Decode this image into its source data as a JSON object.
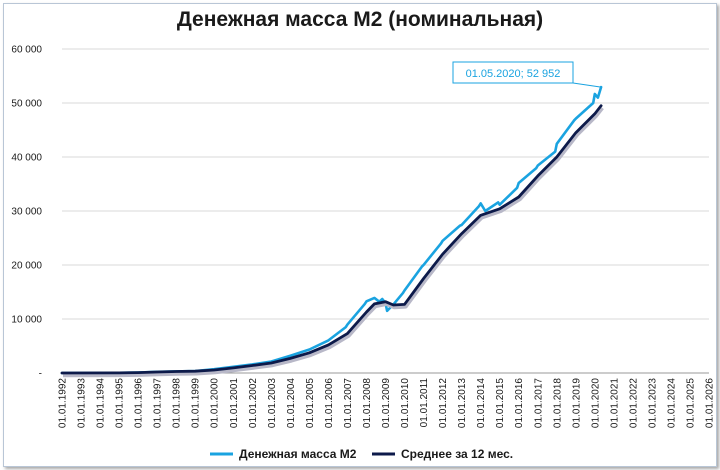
{
  "chart_data": {
    "type": "line",
    "title": "Денежная масса М2 (номинальная)",
    "xlabel": "",
    "ylabel": "",
    "x_ticks": [
      "01.01.1992",
      "01.01.1993",
      "01.01.1994",
      "01.01.1995",
      "01.01.1996",
      "01.01.1997",
      "01.01.1998",
      "01.01.1999",
      "01.01.2000",
      "01.01.2001",
      "01.01.2002",
      "01.01.2003",
      "01.01.2004",
      "01.01.2005",
      "01.01.2006",
      "01.01.2007",
      "01.01.2008",
      "01.01.2009",
      "01.01.2010",
      "01.01.2011",
      "01.01.2012",
      "01.01.2013",
      "01.01.2014",
      "01.01.2015",
      "01.01.2016",
      "01.01.2017",
      "01.01.2018",
      "01.01.2019",
      "01.01.2020",
      "01.01.2021",
      "01.01.2022",
      "01.01.2023",
      "01.01.2024",
      "01.01.2025",
      "01.01.2026"
    ],
    "y_ticks": [
      "-",
      "10 000",
      "20 000",
      "30 000",
      "40 000",
      "50 000",
      "60 000"
    ],
    "ylim": [
      0,
      60000
    ],
    "xlim": [
      "1992-01-01",
      "2026-01-01"
    ],
    "grid": true,
    "legend_position": "bottom",
    "series": [
      {
        "name": "Денежная масса М2",
        "color": "#1aa3e0",
        "points": [
          [
            "1992-01-01",
            0
          ],
          [
            "1994-01-01",
            15
          ],
          [
            "1995-01-01",
            33
          ],
          [
            "1996-01-01",
            97
          ],
          [
            "1997-01-01",
            220
          ],
          [
            "1998-01-01",
            290
          ],
          [
            "1999-01-01",
            370
          ],
          [
            "2000-01-01",
            700
          ],
          [
            "2001-01-01",
            1150
          ],
          [
            "2002-01-01",
            1600
          ],
          [
            "2003-01-01",
            2130
          ],
          [
            "2004-01-01",
            3200
          ],
          [
            "2005-01-01",
            4350
          ],
          [
            "2006-01-01",
            6030
          ],
          [
            "2006-12-01",
            8500
          ],
          [
            "2007-01-01",
            8970
          ],
          [
            "2007-12-01",
            12800
          ],
          [
            "2008-01-01",
            13270
          ],
          [
            "2008-06-01",
            13900
          ],
          [
            "2008-09-01",
            13200
          ],
          [
            "2008-11-01",
            13700
          ],
          [
            "2009-01-01",
            12970
          ],
          [
            "2009-02-01",
            11500
          ],
          [
            "2009-06-01",
            12700
          ],
          [
            "2009-12-01",
            14800
          ],
          [
            "2010-01-01",
            15270
          ],
          [
            "2010-12-01",
            19700
          ],
          [
            "2011-01-01",
            20010
          ],
          [
            "2011-12-01",
            24000
          ],
          [
            "2012-01-01",
            24480
          ],
          [
            "2012-12-01",
            27300
          ],
          [
            "2013-01-01",
            27410
          ],
          [
            "2013-12-01",
            30900
          ],
          [
            "2014-01-01",
            31400
          ],
          [
            "2014-04-01",
            30000
          ],
          [
            "2014-12-01",
            31600
          ],
          [
            "2015-01-01",
            31160
          ],
          [
            "2015-12-01",
            34300
          ],
          [
            "2016-01-01",
            35180
          ],
          [
            "2016-12-01",
            37900
          ],
          [
            "2017-01-01",
            38420
          ],
          [
            "2017-12-01",
            41000
          ],
          [
            "2018-01-01",
            42440
          ],
          [
            "2018-12-01",
            46800
          ],
          [
            "2019-01-01",
            47110
          ],
          [
            "2019-12-01",
            50000
          ],
          [
            "2020-01-01",
            51660
          ],
          [
            "2020-03-01",
            51000
          ],
          [
            "2020-05-01",
            52952
          ]
        ]
      },
      {
        "name": "Среднее за 12 мес.",
        "color": "#0d1a4a",
        "points": [
          [
            "1992-01-01",
            0
          ],
          [
            "1995-01-01",
            20
          ],
          [
            "1996-01-01",
            70
          ],
          [
            "1997-01-01",
            180
          ],
          [
            "1998-01-01",
            270
          ],
          [
            "1999-01-01",
            330
          ],
          [
            "2000-01-01",
            550
          ],
          [
            "2001-01-01",
            950
          ],
          [
            "2002-01-01",
            1380
          ],
          [
            "2003-01-01",
            1850
          ],
          [
            "2004-01-01",
            2700
          ],
          [
            "2005-01-01",
            3750
          ],
          [
            "2006-01-01",
            5200
          ],
          [
            "2007-01-01",
            7300
          ],
          [
            "2008-01-01",
            11300
          ],
          [
            "2008-06-01",
            12800
          ],
          [
            "2009-01-01",
            13200
          ],
          [
            "2009-06-01",
            12600
          ],
          [
            "2010-01-01",
            12700
          ],
          [
            "2011-01-01",
            17500
          ],
          [
            "2012-01-01",
            22000
          ],
          [
            "2013-01-01",
            25800
          ],
          [
            "2014-01-01",
            29200
          ],
          [
            "2015-01-01",
            30400
          ],
          [
            "2016-01-01",
            32600
          ],
          [
            "2017-01-01",
            36500
          ],
          [
            "2018-01-01",
            40000
          ],
          [
            "2019-01-01",
            44500
          ],
          [
            "2020-01-01",
            48000
          ],
          [
            "2020-05-01",
            49500
          ]
        ]
      }
    ],
    "annotations": [
      {
        "text": "01.05.2020; 52 952",
        "x": "2020-05-01",
        "y": 52952
      }
    ]
  }
}
